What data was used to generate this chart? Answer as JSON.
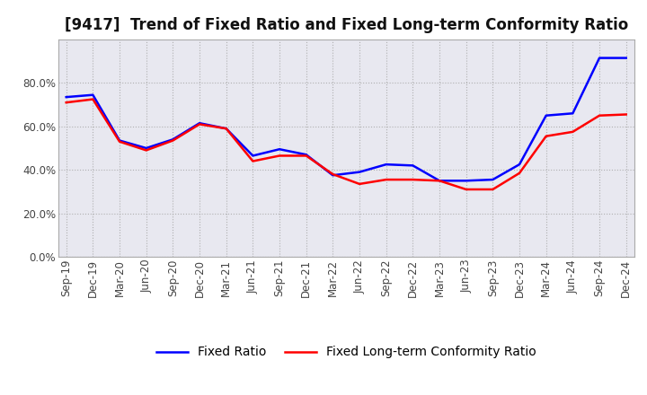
{
  "title": "[9417]  Trend of Fixed Ratio and Fixed Long-term Conformity Ratio",
  "x_labels": [
    "Sep-19",
    "Dec-19",
    "Mar-20",
    "Jun-20",
    "Sep-20",
    "Dec-20",
    "Mar-21",
    "Jun-21",
    "Sep-21",
    "Dec-21",
    "Mar-22",
    "Jun-22",
    "Sep-22",
    "Dec-22",
    "Mar-23",
    "Jun-23",
    "Sep-23",
    "Dec-23",
    "Mar-24",
    "Jun-24",
    "Sep-24",
    "Dec-24"
  ],
  "fixed_ratio": [
    73.5,
    74.5,
    53.5,
    50.0,
    54.0,
    61.5,
    59.0,
    46.5,
    49.5,
    47.0,
    37.5,
    39.0,
    42.5,
    42.0,
    35.0,
    35.0,
    35.5,
    42.5,
    65.0,
    66.0,
    91.5,
    91.5
  ],
  "fixed_lt_ratio": [
    71.0,
    72.5,
    53.0,
    49.0,
    53.5,
    61.0,
    59.0,
    44.0,
    46.5,
    46.5,
    38.0,
    33.5,
    35.5,
    35.5,
    35.0,
    31.0,
    31.0,
    38.5,
    55.5,
    57.5,
    65.0,
    65.5
  ],
  "fixed_ratio_color": "#0000FF",
  "fixed_lt_ratio_color": "#FF0000",
  "ylim": [
    0,
    100
  ],
  "yticks": [
    0,
    20,
    40,
    60,
    80
  ],
  "ytick_labels": [
    "0.0%",
    "20.0%",
    "40.0%",
    "60.0%",
    "80.0%"
  ],
  "background_color": "#FFFFFF",
  "plot_bg_color": "#EEEEFF",
  "grid_color": "#AAAACC",
  "title_fontsize": 12,
  "legend_fontsize": 10,
  "tick_fontsize": 8.5
}
